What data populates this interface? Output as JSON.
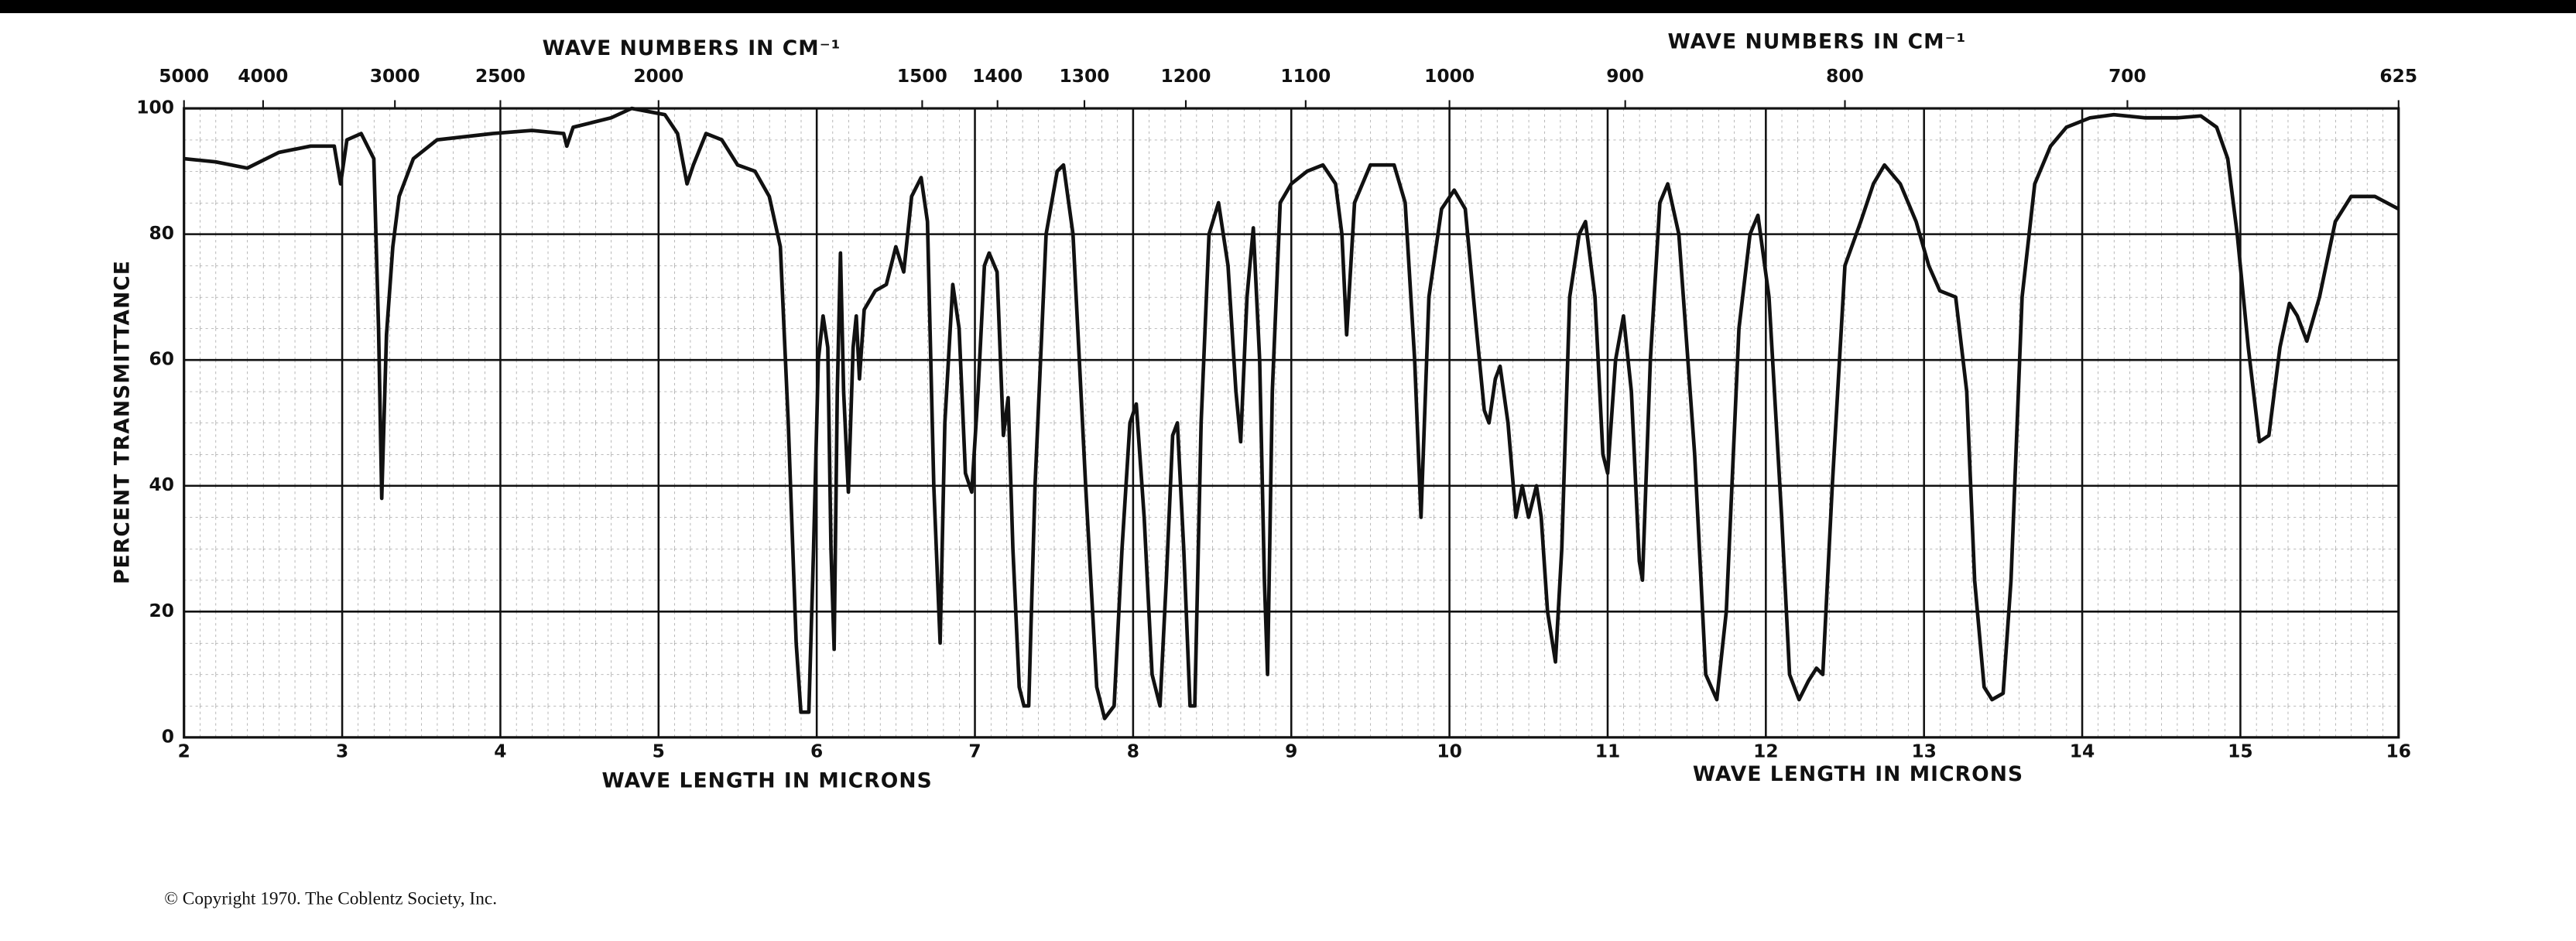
{
  "chart_data": {
    "type": "line",
    "xlabel": "WAVE LENGTH IN MICRONS",
    "ylabel": "PERCENT TRANSMITTANCE",
    "x2label": "WAVE NUMBERS IN CM⁻¹",
    "color": "#111111",
    "grid": true,
    "xlim": [
      2,
      16
    ],
    "xticks": [
      2,
      3,
      4,
      5,
      6,
      7,
      8,
      9,
      10,
      11,
      12,
      13,
      14,
      15,
      16
    ],
    "ylim": [
      0,
      100
    ],
    "yticks": [
      0,
      20,
      40,
      60,
      80,
      100
    ],
    "x2ticks": [
      5000,
      4000,
      3000,
      2500,
      2000,
      1500,
      1400,
      1300,
      1200,
      1100,
      1000,
      900,
      800,
      700,
      625
    ],
    "x": [
      2.0,
      2.2,
      2.4,
      2.6,
      2.8,
      2.95,
      2.99,
      3.03,
      3.12,
      3.2,
      3.23,
      3.25,
      3.28,
      3.32,
      3.36,
      3.45,
      3.6,
      3.95,
      4.2,
      4.4,
      4.42,
      4.46,
      4.7,
      4.83,
      5.04,
      5.12,
      5.18,
      5.22,
      5.3,
      5.4,
      5.5,
      5.61,
      5.7,
      5.77,
      5.82,
      5.87,
      5.9,
      5.95,
      5.98,
      6.01,
      6.04,
      6.07,
      6.09,
      6.11,
      6.13,
      6.15,
      6.17,
      6.2,
      6.23,
      6.25,
      6.27,
      6.3,
      6.37,
      6.44,
      6.5,
      6.55,
      6.6,
      6.66,
      6.7,
      6.74,
      6.78,
      6.81,
      6.86,
      6.9,
      6.94,
      6.98,
      7.02,
      7.06,
      7.09,
      7.14,
      7.18,
      7.21,
      7.24,
      7.28,
      7.31,
      7.34,
      7.38,
      7.45,
      7.52,
      7.56,
      7.62,
      7.7,
      7.77,
      7.82,
      7.88,
      7.93,
      7.98,
      8.02,
      8.07,
      8.12,
      8.17,
      8.21,
      8.25,
      8.28,
      8.32,
      8.36,
      8.39,
      8.43,
      8.48,
      8.54,
      8.6,
      8.65,
      8.68,
      8.72,
      8.76,
      8.8,
      8.83,
      8.85,
      8.88,
      8.93,
      9.0,
      9.1,
      9.2,
      9.28,
      9.32,
      9.35,
      9.4,
      9.5,
      9.65,
      9.72,
      9.78,
      9.82,
      9.87,
      9.95,
      10.03,
      10.1,
      10.17,
      10.22,
      10.25,
      10.29,
      10.32,
      10.37,
      10.42,
      10.46,
      10.5,
      10.55,
      10.58,
      10.62,
      10.67,
      10.71,
      10.76,
      10.82,
      10.86,
      10.92,
      10.97,
      11.0,
      11.05,
      11.1,
      11.15,
      11.2,
      11.22,
      11.27,
      11.33,
      11.38,
      11.45,
      11.55,
      11.62,
      11.69,
      11.75,
      11.83,
      11.9,
      11.95,
      12.02,
      12.1,
      12.15,
      12.21,
      12.27,
      12.32,
      12.36,
      12.42,
      12.5,
      12.6,
      12.68,
      12.75,
      12.85,
      12.95,
      13.03,
      13.1,
      13.2,
      13.27,
      13.32,
      13.38,
      13.43,
      13.5,
      13.55,
      13.62,
      13.7,
      13.8,
      13.9,
      14.05,
      14.2,
      14.4,
      14.6,
      14.75,
      14.85,
      14.92,
      14.98,
      15.05,
      15.12,
      15.18,
      15.25,
      15.31,
      15.36,
      15.42,
      15.5,
      15.6,
      15.7,
      15.85,
      16.0
    ],
    "values": [
      92,
      91.5,
      90.5,
      93,
      94,
      94,
      88,
      95,
      96,
      92,
      65,
      38,
      64,
      78,
      86,
      92,
      95,
      96,
      96.5,
      96,
      94,
      97,
      98.5,
      100,
      99,
      96,
      88,
      91,
      96,
      95,
      91,
      90,
      86,
      78,
      50,
      15,
      4,
      4,
      30,
      60,
      67,
      62,
      30,
      14,
      55,
      77,
      55,
      39,
      62,
      67,
      57,
      68,
      71,
      72,
      78,
      74,
      86,
      89,
      82,
      40,
      15,
      50,
      72,
      65,
      42,
      39,
      55,
      75,
      77,
      74,
      48,
      54,
      30,
      8,
      5,
      5,
      40,
      80,
      90,
      91,
      80,
      40,
      8,
      3,
      5,
      30,
      50,
      53,
      35,
      10,
      5,
      25,
      48,
      50,
      30,
      5,
      5,
      50,
      80,
      85,
      75,
      55,
      47,
      70,
      81,
      60,
      25,
      10,
      55,
      85,
      88,
      90,
      91,
      88,
      80,
      64,
      85,
      91,
      91,
      85,
      60,
      35,
      70,
      84,
      87,
      84,
      65,
      52,
      50,
      57,
      59,
      50,
      35,
      40,
      35,
      40,
      35,
      20,
      12,
      30,
      70,
      80,
      82,
      70,
      45,
      42,
      60,
      67,
      55,
      28,
      25,
      60,
      85,
      88,
      80,
      45,
      10,
      6,
      20,
      65,
      80,
      83,
      70,
      35,
      10,
      6,
      9,
      11,
      10,
      40,
      75,
      82,
      88,
      91,
      88,
      82,
      75,
      71,
      70,
      55,
      25,
      8,
      6,
      7,
      25,
      70,
      88,
      94,
      97,
      98.5,
      99,
      98.5,
      98.5,
      98.8,
      97,
      92,
      80,
      62,
      47,
      48,
      62,
      69,
      67,
      63,
      70,
      82,
      86,
      86,
      84
    ]
  },
  "copyright": "© Copyright 1970.  The Coblentz Society, Inc."
}
